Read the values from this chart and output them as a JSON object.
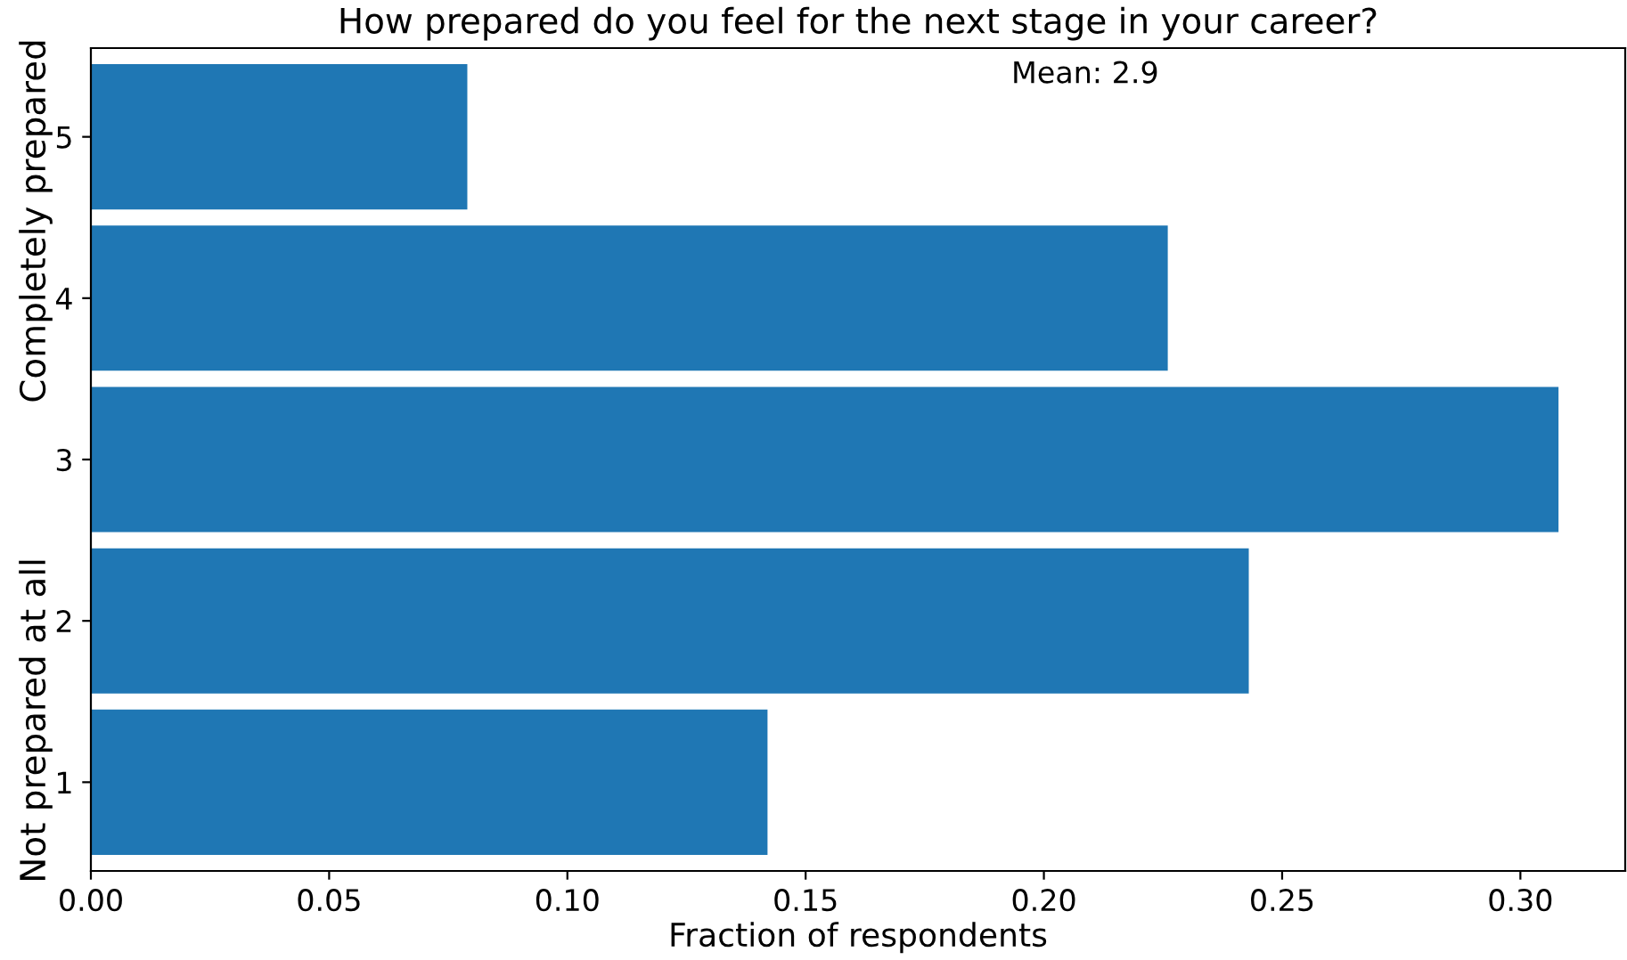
{
  "chart_data": {
    "type": "bar",
    "orientation": "horizontal",
    "title": "How prepared do you feel for the next stage in your career?",
    "xlabel": "Fraction of respondents",
    "categories": [
      "5",
      "4",
      "3",
      "2",
      "1"
    ],
    "values": [
      0.079,
      0.226,
      0.308,
      0.243,
      0.142
    ],
    "color": "#1f77b4",
    "xlim": [
      0,
      0.322
    ],
    "xticks": [
      {
        "value": 0,
        "label": "0.00"
      },
      {
        "value": 0.05,
        "label": "0.05"
      },
      {
        "value": 0.1,
        "label": "0.10"
      },
      {
        "value": 0.15,
        "label": "0.15"
      },
      {
        "value": 0.2,
        "label": "0.20"
      },
      {
        "value": 0.25,
        "label": "0.25"
      },
      {
        "value": 0.3,
        "label": "0.30"
      }
    ],
    "annotations": [
      "Mean: 2.9",
      "Not prepared at all",
      "Completely prepared"
    ],
    "grid": false,
    "legend": false
  }
}
